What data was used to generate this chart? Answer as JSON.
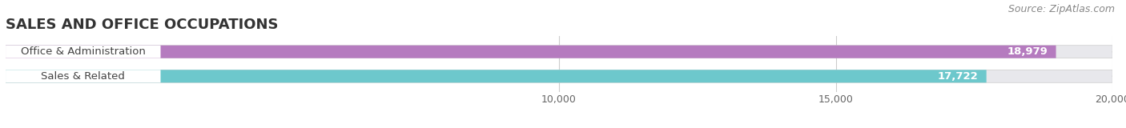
{
  "title": "SALES AND OFFICE OCCUPATIONS",
  "source": "Source: ZipAtlas.com",
  "categories": [
    "Office & Administration",
    "Sales & Related"
  ],
  "values": [
    18979,
    17722
  ],
  "bar_colors": [
    "#b57bbf",
    "#6dc8cc"
  ],
  "value_labels": [
    "18,979",
    "17,722"
  ],
  "xlim": [
    0,
    20000
  ],
  "xticks": [
    10000,
    15000,
    20000
  ],
  "xtick_labels": [
    "10,000",
    "15,000",
    "20,000"
  ],
  "background_color": "#ffffff",
  "bar_background_color": "#e8e8ec",
  "title_fontsize": 13,
  "label_fontsize": 9.5,
  "tick_fontsize": 9,
  "source_fontsize": 9,
  "bar_height": 0.52,
  "figsize": [
    14.06,
    1.6
  ]
}
